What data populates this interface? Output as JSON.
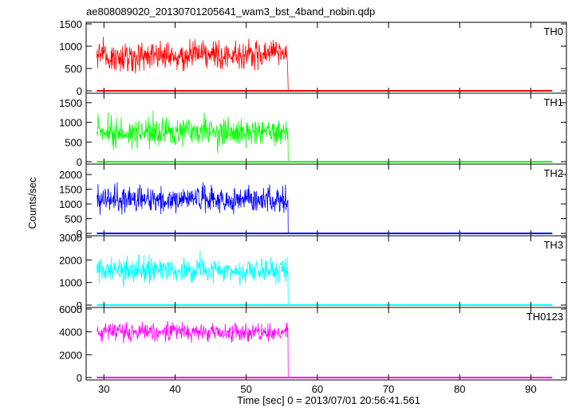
{
  "title": "ae808089020_20130701205641_wam3_bst_4band_nobin.qdp",
  "ylabel": "Counts/sec",
  "xlabel": "Time [sec] 0 = 2013/07/01 20:56:41.561",
  "chart_data": {
    "type": "line",
    "title": "ae808089020_20130701205641_wam3_bst_4band_nobin.qdp",
    "xlabel": "Time [sec] 0 = 2013/07/01 20:56:41.561",
    "ylabel": "Counts/sec",
    "xlim": [
      27.5,
      95
    ],
    "x_ticks": [
      30,
      40,
      50,
      60,
      70,
      80,
      90
    ],
    "grid": false,
    "legend": "none",
    "data_start": 29.0,
    "burst_end": 55.9,
    "data_end": 93.0,
    "series": [
      {
        "name": "TH0",
        "color": "#ff0000",
        "ylim": [
          0,
          1500
        ],
        "y_ticks": [
          0,
          500,
          1000,
          1500
        ],
        "mean_burst": 780,
        "min_burst": 100,
        "max_burst": 1500,
        "mean_after": 0
      },
      {
        "name": "TH1",
        "color": "#00ff00",
        "ylim": [
          0,
          1700
        ],
        "y_ticks": [
          0,
          500,
          1000,
          1500
        ],
        "mean_burst": 760,
        "min_burst": 100,
        "max_burst": 1650,
        "mean_after": 0
      },
      {
        "name": "TH2",
        "color": "#0000ff",
        "ylim": [
          0,
          2300
        ],
        "y_ticks": [
          0,
          500,
          1000,
          1500,
          2000
        ],
        "mean_burst": 1150,
        "min_burst": 300,
        "max_burst": 2300,
        "mean_after": 0
      },
      {
        "name": "TH3",
        "color": "#00ffff",
        "ylim": [
          0,
          3000
        ],
        "y_ticks": [
          0,
          1000,
          2000,
          3000
        ],
        "mean_burst": 1550,
        "min_burst": 500,
        "max_burst": 3000,
        "mean_after": 0
      },
      {
        "name": "TH0123",
        "color": "#ff00ff",
        "ylim": [
          0,
          6000
        ],
        "y_ticks": [
          0,
          2000,
          4000,
          6000
        ],
        "mean_burst": 4000,
        "min_burst": 2500,
        "max_burst": 6000,
        "mean_after": 0
      }
    ]
  }
}
